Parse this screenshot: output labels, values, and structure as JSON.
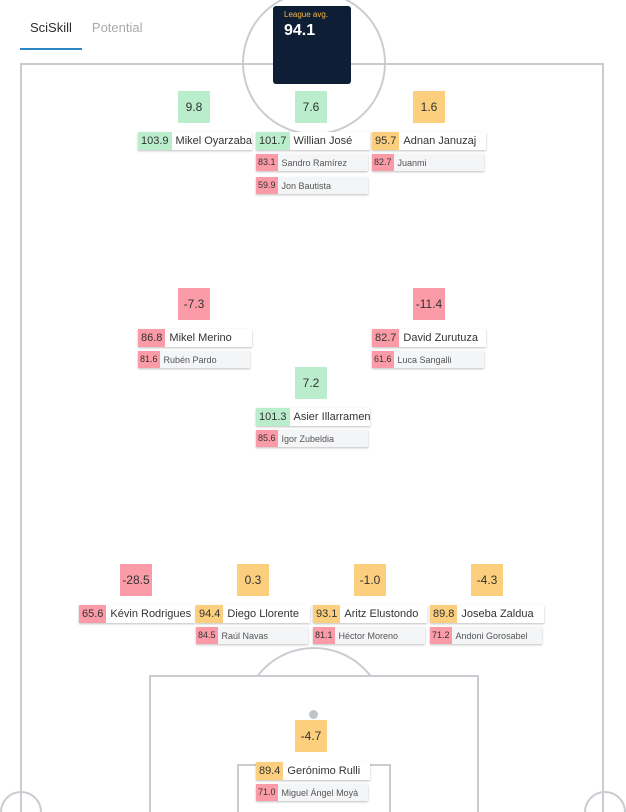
{
  "tabs": [
    "SciSkill",
    "Potential"
  ],
  "league_avg": {
    "label": "League avg.",
    "value": "94.1"
  },
  "colors": {
    "positive": "#b9edcb",
    "neutral": "#fbcf7d",
    "negative": "#fb9ba8",
    "navy": "#0e1e35",
    "accent": "#2a84c6"
  },
  "slots": [
    {
      "score": "9.8",
      "tone": "pos",
      "main": {
        "rating": "103.9",
        "tone": "pos",
        "name": "Mikel Oyarzabal"
      },
      "subs": []
    },
    {
      "score": "7.6",
      "tone": "pos",
      "main": {
        "rating": "101.7",
        "tone": "pos",
        "name": "Willian José"
      },
      "subs": [
        {
          "rating": "83.1",
          "name": "Sandro Ramírez"
        },
        {
          "rating": "59.9",
          "name": "Jon Bautista"
        }
      ]
    },
    {
      "score": "1.6",
      "tone": "mid",
      "main": {
        "rating": "95.7",
        "tone": "mid",
        "name": "Adnan Januzaj"
      },
      "subs": [
        {
          "rating": "82.7",
          "name": "Juanmi"
        }
      ]
    },
    {
      "score": "-7.3",
      "tone": "neg",
      "main": {
        "rating": "86.8",
        "tone": "neg",
        "name": "Mikel Merino"
      },
      "subs": [
        {
          "rating": "81.6",
          "name": "Rubén Pardo"
        }
      ]
    },
    {
      "score": "-11.4",
      "tone": "neg",
      "main": {
        "rating": "82.7",
        "tone": "neg",
        "name": "David Zurutuza"
      },
      "subs": [
        {
          "rating": "61.6",
          "name": "Luca Sangalli"
        }
      ]
    },
    {
      "score": "7.2",
      "tone": "pos",
      "main": {
        "rating": "101.3",
        "tone": "pos",
        "name": "Asier Illarramendi"
      },
      "subs": [
        {
          "rating": "85.6",
          "name": "Igor Zubeldia"
        }
      ]
    },
    {
      "score": "-28.5",
      "tone": "neg",
      "main": {
        "rating": "65.6",
        "tone": "neg",
        "name": "Kévin Rodrigues"
      },
      "subs": []
    },
    {
      "score": "0.3",
      "tone": "mid",
      "main": {
        "rating": "94.4",
        "tone": "mid",
        "name": "Diego Llorente"
      },
      "subs": [
        {
          "rating": "84.5",
          "name": "Raúl Navas"
        }
      ]
    },
    {
      "score": "-1.0",
      "tone": "mid",
      "main": {
        "rating": "93.1",
        "tone": "mid",
        "name": "Aritz Elustondo"
      },
      "subs": [
        {
          "rating": "81.1",
          "name": "Héctor Moreno"
        }
      ]
    },
    {
      "score": "-4.3",
      "tone": "mid",
      "main": {
        "rating": "89.8",
        "tone": "mid",
        "name": "Joseba Zaldua"
      },
      "subs": [
        {
          "rating": "71.2",
          "name": "Andoni Gorosabel"
        }
      ]
    },
    {
      "score": "-4.7",
      "tone": "mid",
      "main": {
        "rating": "89.4",
        "tone": "mid",
        "name": "Gerónimo Rulli"
      },
      "subs": [
        {
          "rating": "71.0",
          "name": "Miguel Ángel Moyà"
        }
      ]
    }
  ]
}
